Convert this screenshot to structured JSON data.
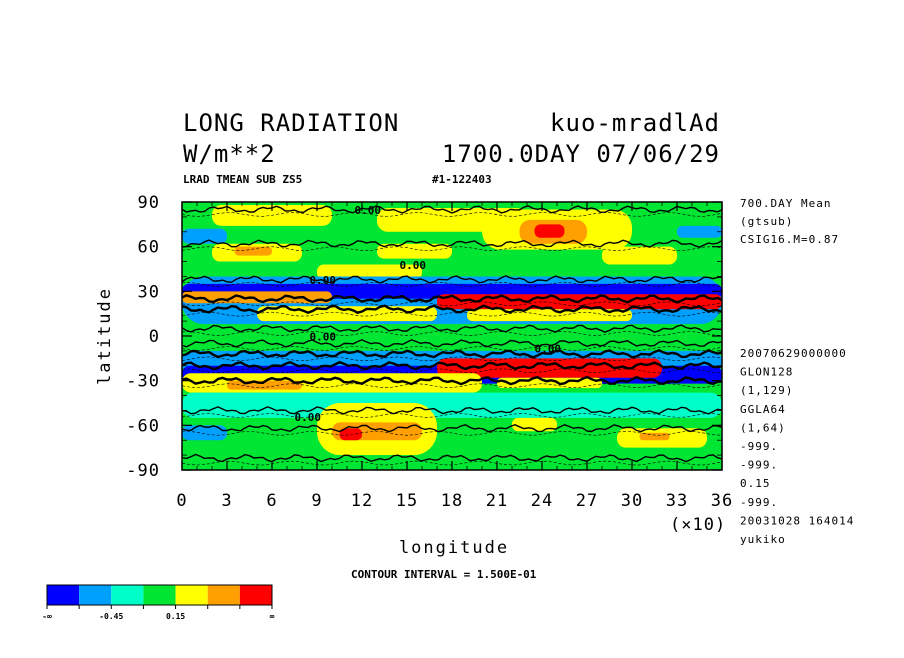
{
  "header": {
    "title_left": "LONG RADIATION",
    "title_right": "kuo-mradlAd",
    "units": "W/m**2",
    "time_label": "1700.0DAY 07/06/29",
    "variable_line": "LRAD TMEAN SUB ZS5",
    "run_id": "#1-122403"
  },
  "side_info": {
    "top": [
      "700.DAY Mean",
      "(gtsub)",
      "CSIG16.M=0.87"
    ],
    "bottom": [
      "20070629000000",
      "GLON128",
      "(1,129)",
      "GGLA64",
      "(1,64)",
      "-999.",
      "-999.",
      "0.15",
      "-999.",
      "20031028 164014",
      "yukiko"
    ]
  },
  "contour_interval": "CONTOUR INTERVAL = 1.500E-01",
  "x_multiplier": "(×10)",
  "colorbar": {
    "colors": [
      "#0000ff",
      "#00a0ff",
      "#00ffc8",
      "#00e632",
      "#ffff00",
      "#ffa000",
      "#ff0000"
    ],
    "labels": [
      "-∞",
      "-0.45",
      "0.15",
      "∞"
    ]
  },
  "chart_data": {
    "type": "heatmap",
    "xlabel": "longitude",
    "ylabel": "latitude",
    "xlim": [
      0,
      36
    ],
    "ylim": [
      -90,
      90
    ],
    "x_ticks": [
      0,
      3,
      6,
      9,
      12,
      15,
      18,
      21,
      24,
      27,
      30,
      33,
      36
    ],
    "x_tick_labels": [
      "0",
      "3",
      "6",
      "9",
      "12",
      "15",
      "18",
      "21",
      "24",
      "27",
      "30",
      "33",
      "36"
    ],
    "y_ticks": [
      90,
      60,
      30,
      0,
      -30,
      -60,
      -90
    ],
    "y_tick_labels": [
      "90",
      "60",
      "30",
      "0",
      "-30",
      "-60",
      "-90"
    ],
    "contour_labels": [
      {
        "text": "0.00",
        "x": 11.5,
        "y": 82
      },
      {
        "text": "0.00",
        "x": 14.5,
        "y": 45
      },
      {
        "text": "0.00",
        "x": 8.5,
        "y": 35
      },
      {
        "text": "0.00",
        "x": 8.5,
        "y": -3
      },
      {
        "text": "0.00",
        "x": 23.5,
        "y": -11
      },
      {
        "text": "0.00",
        "x": 7.5,
        "y": -57
      }
    ],
    "levels": [
      "-∞",
      "-0.45",
      "0.15",
      "∞"
    ],
    "regions": [
      {
        "lat": [
          90,
          80
        ],
        "lon": [
          0,
          36
        ],
        "level": 3
      },
      {
        "lat": [
          88,
          74
        ],
        "lon": [
          2,
          10
        ],
        "level": 4
      },
      {
        "lat": [
          86,
          70
        ],
        "lon": [
          13,
          23
        ],
        "level": 4
      },
      {
        "lat": [
          85,
          58
        ],
        "lon": [
          20,
          30
        ],
        "level": 4
      },
      {
        "lat": [
          78,
          62
        ],
        "lon": [
          22.5,
          27
        ],
        "level": 5
      },
      {
        "lat": [
          75,
          66
        ],
        "lon": [
          23.5,
          25.5
        ],
        "level": 6
      },
      {
        "lat": [
          72,
          62
        ],
        "lon": [
          0,
          3
        ],
        "level": 1
      },
      {
        "lat": [
          74,
          66
        ],
        "lon": [
          33,
          36
        ],
        "level": 1
      },
      {
        "lat": [
          62,
          50
        ],
        "lon": [
          2,
          8
        ],
        "level": 4
      },
      {
        "lat": [
          60,
          54
        ],
        "lon": [
          3.5,
          6
        ],
        "level": 5
      },
      {
        "lat": [
          62,
          52
        ],
        "lon": [
          13,
          18
        ],
        "level": 4
      },
      {
        "lat": [
          60,
          48
        ],
        "lon": [
          28,
          33
        ],
        "level": 4
      },
      {
        "lat": [
          48,
          38
        ],
        "lon": [
          9,
          16
        ],
        "level": 4
      },
      {
        "lat": [
          40,
          8
        ],
        "lon": [
          0,
          36
        ],
        "level": 1
      },
      {
        "lat": [
          35,
          25
        ],
        "lon": [
          0,
          36
        ],
        "level": 0
      },
      {
        "lat": [
          28,
          18
        ],
        "lon": [
          17,
          36
        ],
        "level": 6
      },
      {
        "lat": [
          30,
          22
        ],
        "lon": [
          0,
          10
        ],
        "level": 5
      },
      {
        "lat": [
          20,
          10
        ],
        "lon": [
          5,
          17
        ],
        "level": 4
      },
      {
        "lat": [
          18,
          10
        ],
        "lon": [
          19,
          30
        ],
        "level": 4
      },
      {
        "lat": [
          8,
          -10
        ],
        "lon": [
          0,
          36
        ],
        "level": 3
      },
      {
        "lat": [
          -10,
          -25
        ],
        "lon": [
          0,
          36
        ],
        "level": 1
      },
      {
        "lat": [
          -20,
          -32
        ],
        "lon": [
          0,
          36
        ],
        "level": 0
      },
      {
        "lat": [
          -15,
          -28
        ],
        "lon": [
          17,
          32
        ],
        "level": 6
      },
      {
        "lat": [
          -25,
          -38
        ],
        "lon": [
          0,
          20
        ],
        "level": 4
      },
      {
        "lat": [
          -30,
          -36
        ],
        "lon": [
          3,
          8
        ],
        "level": 5
      },
      {
        "lat": [
          -28,
          -35
        ],
        "lon": [
          21,
          28
        ],
        "level": 4
      },
      {
        "lat": [
          -38,
          -55
        ],
        "lon": [
          0,
          36
        ],
        "level": 2
      },
      {
        "lat": [
          -45,
          -80
        ],
        "lon": [
          9,
          17
        ],
        "level": 4
      },
      {
        "lat": [
          -58,
          -70
        ],
        "lon": [
          10,
          16
        ],
        "level": 5
      },
      {
        "lat": [
          -62,
          -70
        ],
        "lon": [
          10.5,
          12
        ],
        "level": 6
      },
      {
        "lat": [
          -55,
          -64
        ],
        "lon": [
          22,
          25
        ],
        "level": 4
      },
      {
        "lat": [
          -62,
          -75
        ],
        "lon": [
          29,
          35
        ],
        "level": 4
      },
      {
        "lat": [
          -65,
          -70
        ],
        "lon": [
          30.5,
          32.5
        ],
        "level": 5
      },
      {
        "lat": [
          -60,
          -70
        ],
        "lon": [
          0,
          3
        ],
        "level": 1
      },
      {
        "lat": [
          -80,
          -90
        ],
        "lon": [
          0,
          36
        ],
        "level": 3
      }
    ],
    "thick_contour_lats": [
      85,
      62,
      38,
      25,
      18,
      5,
      -5,
      -12,
      -20,
      -30,
      -50,
      -62,
      -82
    ]
  }
}
